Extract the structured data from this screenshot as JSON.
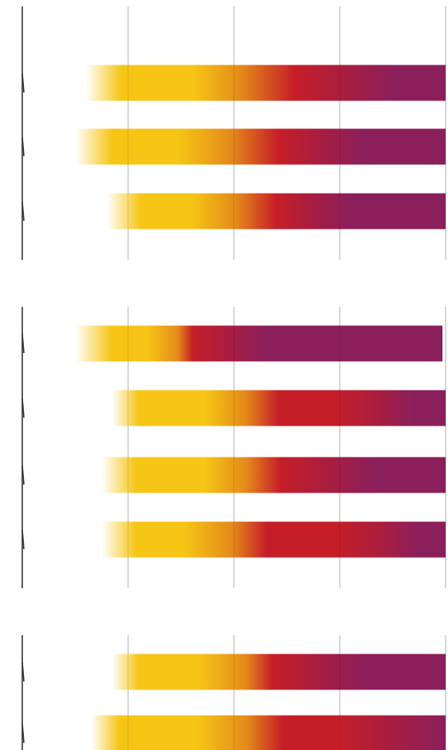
{
  "colors": {
    "low": "#f6c515",
    "mid_orange": "#e48a1a",
    "mid_red": "#c61e28",
    "high_purple": "#8b1f5c",
    "gridline": "#c8c8c8",
    "axis": "#333333"
  },
  "chart_data": {
    "type": "bar",
    "orientation": "horizontal",
    "style": "gradient-density",
    "title": "",
    "xlabel": "",
    "ylabel": "",
    "tick_labels_visible": false,
    "legend": "none",
    "grid": true,
    "xlim": [
      0,
      4
    ],
    "x_gridlines": [
      1,
      2,
      3,
      4
    ],
    "panels": [
      {
        "bars": [
          {
            "start": 0.6,
            "stops": [
              [
                0.0,
                "#ffffff"
              ],
              [
                0.1,
                "#f6c515"
              ],
              [
                0.3,
                "#f6c515"
              ],
              [
                0.43,
                "#e48a1a"
              ],
              [
                0.58,
                "#c61e28"
              ],
              [
                0.72,
                "#a81d40"
              ],
              [
                0.86,
                "#8b1f5c"
              ],
              [
                1.0,
                "#8b1f5c"
              ]
            ],
            "end": 4.0
          },
          {
            "start": 0.5,
            "stops": [
              [
                0.0,
                "#ffffff"
              ],
              [
                0.1,
                "#f6c515"
              ],
              [
                0.28,
                "#f6c515"
              ],
              [
                0.42,
                "#e48a1a"
              ],
              [
                0.55,
                "#c61e28"
              ],
              [
                0.66,
                "#a81d40"
              ],
              [
                0.78,
                "#8b1f5c"
              ],
              [
                1.0,
                "#8b1f5c"
              ]
            ],
            "end": 4.0
          },
          {
            "start": 0.8,
            "stops": [
              [
                0.0,
                "#ffffff"
              ],
              [
                0.1,
                "#f6c515"
              ],
              [
                0.25,
                "#f6c515"
              ],
              [
                0.38,
                "#e48a1a"
              ],
              [
                0.5,
                "#c61e28"
              ],
              [
                0.6,
                "#a81d40"
              ],
              [
                0.72,
                "#8b1f5c"
              ],
              [
                1.0,
                "#8b1f5c"
              ]
            ],
            "end": 4.0
          }
        ]
      },
      {
        "bars": [
          {
            "start": 0.5,
            "stops": [
              [
                0.0,
                "#ffffff"
              ],
              [
                0.1,
                "#f6c515"
              ],
              [
                0.2,
                "#f6c515"
              ],
              [
                0.28,
                "#e48a1a"
              ],
              [
                0.32,
                "#c61e28"
              ],
              [
                0.42,
                "#a81d40"
              ],
              [
                0.52,
                "#8b1f5c"
              ],
              [
                1.0,
                "#8b1f5c"
              ]
            ],
            "end": 3.97
          },
          {
            "start": 0.85,
            "stops": [
              [
                0.0,
                "#ffffff"
              ],
              [
                0.08,
                "#f6c515"
              ],
              [
                0.28,
                "#f6c515"
              ],
              [
                0.4,
                "#e48a1a"
              ],
              [
                0.5,
                "#c61e28"
              ],
              [
                0.66,
                "#c61e28"
              ],
              [
                0.8,
                "#a81d40"
              ],
              [
                0.9,
                "#8b1f5c"
              ],
              [
                1.0,
                "#8b1f5c"
              ]
            ],
            "end": 4.0
          },
          {
            "start": 0.75,
            "stops": [
              [
                0.0,
                "#ffffff"
              ],
              [
                0.1,
                "#f6c515"
              ],
              [
                0.3,
                "#f6c515"
              ],
              [
                0.42,
                "#e48a1a"
              ],
              [
                0.52,
                "#c61e28"
              ],
              [
                0.66,
                "#a81d40"
              ],
              [
                0.8,
                "#8b1f5c"
              ],
              [
                1.0,
                "#8b1f5c"
              ]
            ],
            "end": 4.0
          },
          {
            "start": 0.75,
            "stops": [
              [
                0.0,
                "#ffffff"
              ],
              [
                0.1,
                "#f6c515"
              ],
              [
                0.24,
                "#f6c515"
              ],
              [
                0.38,
                "#e48a1a"
              ],
              [
                0.48,
                "#c61e28"
              ],
              [
                0.68,
                "#c61e28"
              ],
              [
                0.82,
                "#a81d40"
              ],
              [
                0.92,
                "#8b1f5c"
              ],
              [
                1.0,
                "#8b1f5c"
              ]
            ],
            "end": 4.0
          }
        ]
      },
      {
        "bars": [
          {
            "start": 0.85,
            "stops": [
              [
                0.0,
                "#ffffff"
              ],
              [
                0.08,
                "#f6c515"
              ],
              [
                0.26,
                "#f6c515"
              ],
              [
                0.4,
                "#e48a1a"
              ],
              [
                0.48,
                "#c61e28"
              ],
              [
                0.62,
                "#a81d40"
              ],
              [
                0.76,
                "#8b1f5c"
              ],
              [
                1.0,
                "#8b1f5c"
              ]
            ],
            "end": 4.0
          },
          {
            "start": 0.65,
            "stops": [
              [
                0.0,
                "#ffffff"
              ],
              [
                0.08,
                "#f6c515"
              ],
              [
                0.3,
                "#f6c515"
              ],
              [
                0.44,
                "#e48a1a"
              ],
              [
                0.54,
                "#c61e28"
              ],
              [
                0.7,
                "#c61e28"
              ],
              [
                0.84,
                "#a81d40"
              ],
              [
                1.0,
                "#8b1f5c"
              ]
            ],
            "end": 4.0
          }
        ]
      }
    ]
  }
}
